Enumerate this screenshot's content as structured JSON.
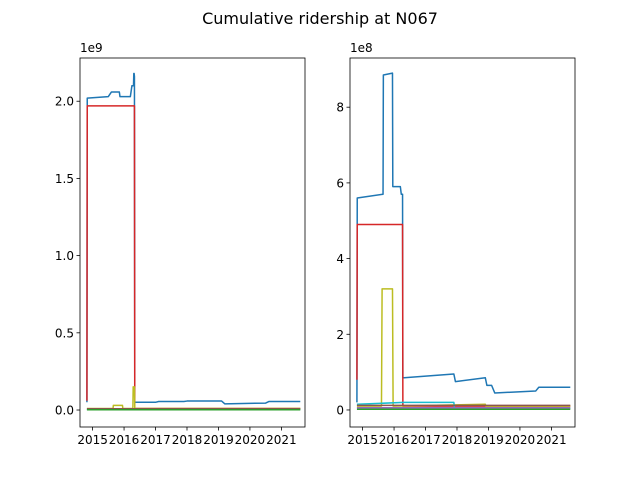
{
  "figure": {
    "title": "Cumulative ridership at N067"
  },
  "chart_data": [
    {
      "type": "line",
      "title": "",
      "xlabel": "",
      "ylabel": "",
      "offset_label": "1e9",
      "xlim": [
        2014.6,
        2021.75
      ],
      "ylim": [
        -0.11,
        2.28
      ],
      "x_ticks": [
        2015,
        2016,
        2017,
        2018,
        2019,
        2020,
        2021
      ],
      "x_tick_labels": [
        "2015",
        "2016",
        "2017",
        "2018",
        "2019",
        "2020",
        "2021"
      ],
      "y_ticks": [
        0.0,
        0.5,
        1.0,
        1.5,
        2.0
      ],
      "y_tick_labels": [
        "0.0",
        "0.5",
        "1.0",
        "1.5",
        "2.0"
      ],
      "grid": false,
      "legend": "none",
      "series": [
        {
          "color": "#1f77b4",
          "x": [
            2014.82,
            2014.83,
            2014.83,
            2015.5,
            2015.6,
            2015.85,
            2015.87,
            2016.2,
            2016.25,
            2016.3,
            2016.31,
            2016.32,
            2016.33,
            2016.34,
            2016.35,
            2017.0,
            2017.1,
            2017.9,
            2018.0,
            2019.1,
            2019.2,
            2020.5,
            2020.6,
            2021.6
          ],
          "y": [
            0.05,
            1.98,
            2.02,
            2.03,
            2.06,
            2.06,
            2.03,
            2.03,
            2.1,
            2.1,
            2.18,
            2.18,
            2.16,
            0.05,
            0.05,
            0.05,
            0.055,
            0.055,
            0.058,
            0.058,
            0.04,
            0.045,
            0.055,
            0.055
          ]
        },
        {
          "color": "#d62728",
          "x": [
            2014.82,
            2014.83,
            2016.33,
            2016.34,
            2021.6
          ],
          "y": [
            0.06,
            1.97,
            1.97,
            0.01,
            0.01
          ]
        },
        {
          "color": "#bcbd22",
          "x": [
            2014.82,
            2015.65,
            2015.66,
            2015.95,
            2015.96,
            2016.28,
            2016.29,
            2016.33,
            2016.34,
            2021.6
          ],
          "y": [
            0.01,
            0.01,
            0.03,
            0.03,
            0.01,
            0.01,
            0.15,
            0.15,
            0.01,
            0.01
          ]
        },
        {
          "color": "#17becf",
          "x": [
            2014.82,
            2021.6
          ],
          "y": [
            0.003,
            0.003
          ]
        },
        {
          "color": "#8c564b",
          "x": [
            2014.82,
            2021.6
          ],
          "y": [
            0.008,
            0.008
          ]
        },
        {
          "color": "#2ca02c",
          "x": [
            2014.82,
            2021.6
          ],
          "y": [
            0.002,
            0.002
          ]
        }
      ]
    },
    {
      "type": "line",
      "title": "",
      "xlabel": "",
      "ylabel": "",
      "offset_label": "1e8",
      "xlim": [
        2014.6,
        2021.75
      ],
      "ylim": [
        -0.45,
        9.3
      ],
      "x_ticks": [
        2015,
        2016,
        2017,
        2018,
        2019,
        2020,
        2021
      ],
      "x_tick_labels": [
        "2015",
        "2016",
        "2017",
        "2018",
        "2019",
        "2020",
        "2021"
      ],
      "y_ticks": [
        0,
        2,
        4,
        6,
        8
      ],
      "y_tick_labels": [
        "0",
        "2",
        "4",
        "6",
        "8"
      ],
      "grid": false,
      "legend": "none",
      "series": [
        {
          "color": "#1f77b4",
          "x": [
            2014.82,
            2014.83,
            2015.65,
            2015.66,
            2015.95,
            2015.96,
            2016.2,
            2016.23,
            2016.27,
            2016.28,
            2016.32,
            2017.9,
            2017.95,
            2018.9,
            2018.95,
            2019.1,
            2019.2,
            2020.5,
            2020.6,
            2020.9,
            2021.6
          ],
          "y": [
            0.2,
            5.6,
            5.7,
            8.85,
            8.9,
            5.9,
            5.9,
            5.7,
            5.7,
            0.85,
            0.85,
            0.95,
            0.75,
            0.85,
            0.65,
            0.65,
            0.45,
            0.5,
            0.6,
            0.6,
            0.6
          ]
        },
        {
          "color": "#d62728",
          "x": [
            2014.82,
            2014.83,
            2016.27,
            2016.28,
            2021.6
          ],
          "y": [
            0.8,
            4.9,
            4.9,
            0.1,
            0.1
          ]
        },
        {
          "color": "#bcbd22",
          "x": [
            2014.82,
            2015.6,
            2015.62,
            2015.95,
            2015.97,
            2018.9,
            2018.92,
            2021.6
          ],
          "y": [
            0.1,
            0.1,
            3.2,
            3.2,
            0.1,
            0.15,
            0.1,
            0.1
          ]
        },
        {
          "color": "#17becf",
          "x": [
            2014.82,
            2016.3,
            2016.32,
            2017.9,
            2017.92,
            2021.6
          ],
          "y": [
            0.15,
            0.2,
            0.2,
            0.2,
            0.05,
            0.05
          ]
        },
        {
          "color": "#8c564b",
          "x": [
            2014.82,
            2021.6
          ],
          "y": [
            0.12,
            0.12
          ]
        },
        {
          "color": "#2ca02c",
          "x": [
            2014.82,
            2021.6
          ],
          "y": [
            0.02,
            0.02
          ]
        },
        {
          "color": "#9467bd",
          "x": [
            2014.82,
            2021.6
          ],
          "y": [
            0.06,
            0.06
          ]
        }
      ]
    }
  ]
}
